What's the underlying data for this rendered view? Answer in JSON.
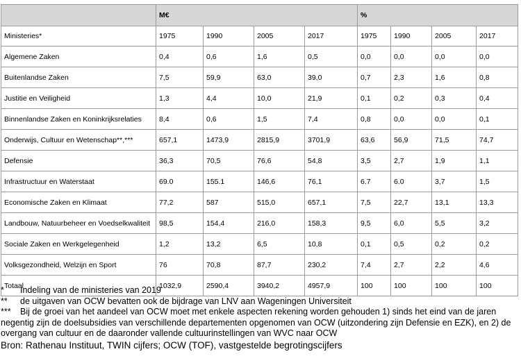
{
  "table": {
    "group_header": [
      "",
      "M€",
      "%"
    ],
    "columns": [
      "Ministeries*",
      "1975",
      "1990",
      "2005",
      "2017",
      "1975",
      "1990",
      "2005",
      "2017"
    ],
    "rows": [
      [
        "Algemene Zaken",
        "0,4",
        "0,6",
        "1,6",
        "0,5",
        "0,0",
        "0,0",
        "0,0",
        "0,0"
      ],
      [
        "Buitenlandse Zaken",
        "7,5",
        "59,9",
        "63,0",
        "39,0",
        "0,7",
        "2,3",
        "1,6",
        "0,8"
      ],
      [
        "Justitie en Veiligheid",
        "1,3",
        "4,4",
        "10,0",
        "21,9",
        "0,1",
        "0,2",
        "0,3",
        "0,4"
      ],
      [
        "Binnenlandse Zaken en Koninkrijksrelaties",
        "8,4",
        "0,6",
        "1,5",
        "7,4",
        "0,8",
        "0,0",
        "0,0",
        "0,1"
      ],
      [
        "Onderwijs, Cultuur en Wetenschap**,***",
        "657,1",
        "1473,9",
        "2815,9",
        "3701,9",
        "63,6",
        "56,9",
        "71,5",
        "74,7"
      ],
      [
        "Defensie",
        "36,3",
        "70,5",
        "76,6",
        "54,8",
        "3,5",
        "2,7",
        "1,9",
        "1,1"
      ],
      [
        "Infrastructuur en Waterstaat",
        "69.0",
        "155.1",
        "146,6",
        "76,1",
        "6.7",
        "6.0",
        "3,7",
        "1,5"
      ],
      [
        "Economische Zaken en Klimaat",
        "77,2",
        "587",
        "515,0",
        "657,1",
        "7,5",
        "22,7",
        "13,1",
        "13,3"
      ],
      [
        "Landbouw, Natuurbeheer en Voedselkwaliteit",
        "98,5",
        "154,4",
        "216,0",
        "158,3",
        "9,5",
        "6,0",
        "5,5",
        "3,2"
      ],
      [
        "Sociale Zaken en Werkgelegenheid",
        "1,2",
        "13,2",
        "6,5",
        "10,8",
        "0,1",
        "0,5",
        "0,2",
        "0,2"
      ],
      [
        "Volksgezondheid, Welzijn en Sport",
        "76",
        "70,8",
        "87,7",
        "230,2",
        "7,4",
        "2,7",
        "2,2",
        "4,6"
      ],
      [
        "Totaal",
        "1032,9",
        "2590,4",
        "3940,2",
        "4957,9",
        "100",
        "100",
        "100",
        "100"
      ]
    ]
  },
  "notes": [
    {
      "mark": "*",
      "text": "Indeling van de ministeries van 2019"
    },
    {
      "mark": "**",
      "text": "de uitgaven van OCW bevatten ook de bijdrage van LNV aan Wageningen Universiteit"
    },
    {
      "mark": "***",
      "text": "Bij de groei van het aandeel van OCW moet met enkele aspecten rekening worden gehouden 1) sinds het eind van de jaren negentig zijn de doelsubsidies van verschillende departementen opgenomen van OCW (uitzondering zijn Defensie en EZK), en 2) de overgang van cultuur en de daaronder vallende cultuurinstellingen van WVC naar OCW"
    }
  ],
  "source": "Bron: Rathenau Instituut, TWIN cijfers; OCW (TOF), vastgestelde begrotingscijfers"
}
